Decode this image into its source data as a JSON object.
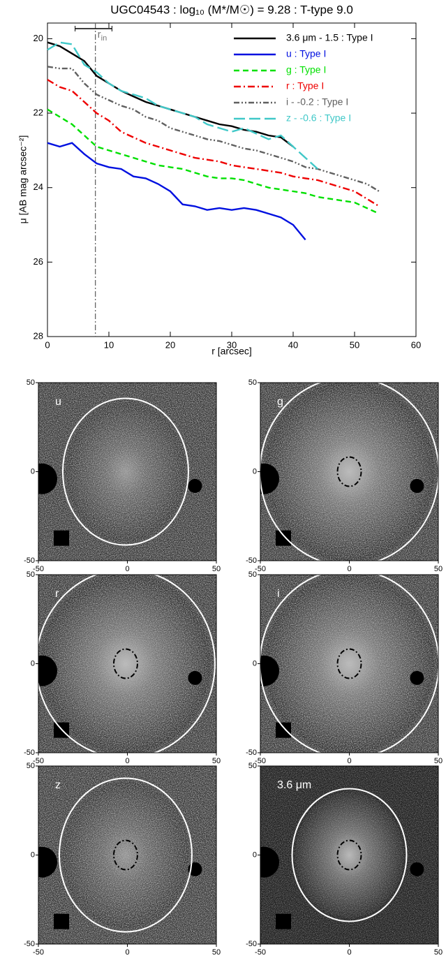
{
  "chart_data": [
    {
      "type": "line",
      "title": "UGC04543 : log₁₀ (M*/M☉) = 9.28 : T-type 9.0",
      "x_label": "r [arcsec]",
      "y_label": "μ [AB mag arcsec⁻²]",
      "xlim": [
        0,
        60
      ],
      "xticks": [
        0,
        10,
        20,
        30,
        40,
        50,
        60
      ],
      "ylim": [
        28,
        19.58
      ],
      "yticks": [
        20,
        22,
        24,
        26,
        28
      ],
      "r_in": {
        "label": "r",
        "subscript": "in",
        "x": 7.8,
        "bar": [
          4.5,
          10.5
        ]
      },
      "x": [
        0,
        2,
        4,
        6,
        8,
        10,
        12,
        14,
        16,
        18,
        20,
        22,
        24,
        26,
        28,
        30,
        32,
        34,
        36,
        38,
        40,
        42,
        44,
        46,
        48,
        50,
        52,
        54
      ],
      "series": [
        {
          "name": "3.6 μm - 1.5 : Type I",
          "color": "#000000",
          "dash": "solid",
          "values": [
            20.1,
            20.2,
            20.4,
            20.6,
            21.0,
            21.2,
            21.4,
            21.55,
            21.7,
            21.8,
            21.9,
            22.0,
            22.1,
            22.2,
            22.3,
            22.35,
            22.45,
            22.5,
            22.6,
            22.65,
            22.9,
            null,
            null,
            null,
            null,
            null,
            null,
            null
          ]
        },
        {
          "name": "u : Type I",
          "color": "#0010e0",
          "dash": "solid",
          "values": [
            22.8,
            22.9,
            22.8,
            23.1,
            23.35,
            23.45,
            23.5,
            23.7,
            23.75,
            23.9,
            24.1,
            24.45,
            24.5,
            24.6,
            24.55,
            24.6,
            24.55,
            24.6,
            24.7,
            24.8,
            25.0,
            25.4,
            null,
            null,
            null,
            null,
            null,
            null
          ]
        },
        {
          "name": "g : Type I",
          "color": "#00e000",
          "dash": "dashed",
          "values": [
            21.9,
            22.1,
            22.3,
            22.6,
            22.9,
            23.0,
            23.1,
            23.2,
            23.3,
            23.4,
            23.45,
            23.5,
            23.6,
            23.7,
            23.75,
            23.75,
            23.8,
            23.9,
            24.0,
            24.05,
            24.1,
            24.15,
            24.25,
            24.3,
            24.35,
            24.4,
            24.55,
            24.7
          ]
        },
        {
          "name": "r : Type I",
          "color": "#ee0000",
          "dash": "dashdot",
          "values": [
            21.1,
            21.3,
            21.4,
            21.7,
            22.0,
            22.2,
            22.5,
            22.65,
            22.8,
            22.9,
            23.0,
            23.1,
            23.2,
            23.25,
            23.3,
            23.4,
            23.45,
            23.5,
            23.55,
            23.6,
            23.7,
            23.75,
            23.8,
            23.9,
            24.0,
            24.1,
            24.3,
            24.5
          ]
        },
        {
          "name": "i - -0.2 : Type I",
          "color": "#606060",
          "dash": "dashdotdot",
          "values": [
            20.75,
            20.8,
            20.8,
            21.2,
            21.5,
            21.65,
            21.8,
            21.9,
            22.1,
            22.2,
            22.4,
            22.5,
            22.6,
            22.7,
            22.75,
            22.85,
            22.95,
            23.0,
            23.1,
            23.2,
            23.3,
            23.45,
            23.5,
            23.6,
            23.7,
            23.8,
            23.9,
            24.1
          ]
        },
        {
          "name": "z - -0.6 : Type I",
          "color": "#40c8c8",
          "dash": "longdash",
          "values": [
            20.3,
            20.1,
            20.15,
            20.7,
            20.9,
            21.2,
            21.4,
            21.5,
            21.6,
            21.8,
            21.9,
            22.0,
            22.1,
            22.3,
            22.4,
            22.5,
            22.4,
            22.55,
            22.7,
            22.6,
            22.9,
            23.2,
            23.5,
            null,
            null,
            null,
            null,
            null
          ]
        }
      ]
    },
    {
      "type": "image",
      "xlim": [
        -50,
        50
      ],
      "ylim": [
        -50,
        50
      ],
      "xticks": [
        -50,
        0,
        50
      ],
      "yticks": [
        -50,
        0,
        50
      ],
      "panels": [
        "u",
        "g",
        "r",
        "i",
        "z",
        "3.6 μm"
      ]
    }
  ]
}
